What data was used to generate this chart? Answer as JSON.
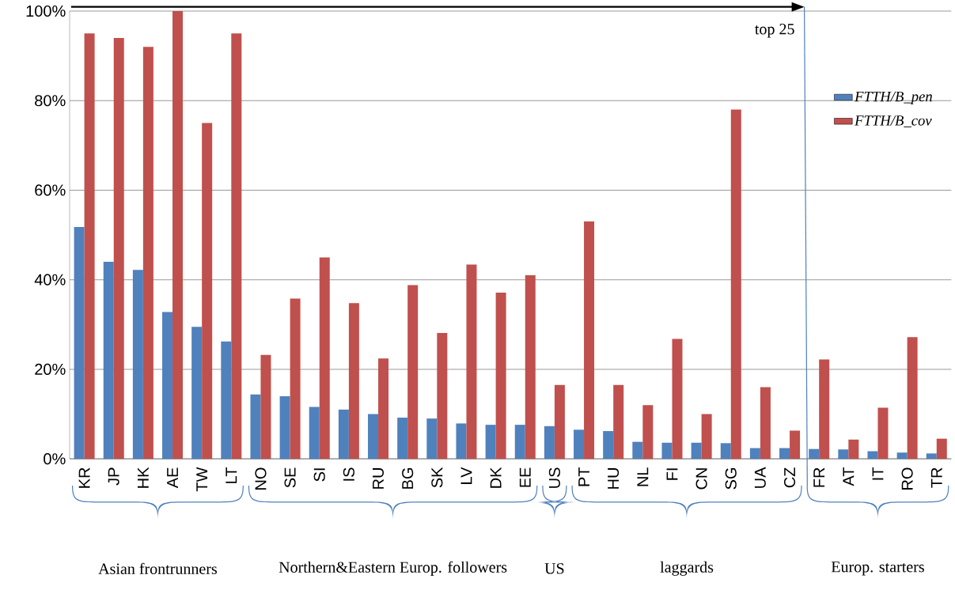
{
  "chart_data": {
    "type": "bar",
    "categories": [
      "KR",
      "JP",
      "HK",
      "AE",
      "TW",
      "LT",
      "NO",
      "SE",
      "SI",
      "IS",
      "RU",
      "BG",
      "SK",
      "LV",
      "DK",
      "EE",
      "US",
      "PT",
      "HU",
      "NL",
      "FI",
      "CN",
      "SG",
      "UA",
      "CZ",
      "FR",
      "AT",
      "IT",
      "RO",
      "TR"
    ],
    "series": [
      {
        "name": "FTTH/B_pen",
        "color": "#4f81bd",
        "values": [
          51.8,
          44,
          42.2,
          32.8,
          29.5,
          26.2,
          14.4,
          14,
          11.6,
          11,
          10,
          9.2,
          9,
          7.9,
          7.6,
          7.6,
          7.3,
          6.5,
          6.2,
          3.8,
          3.6,
          3.6,
          3.5,
          2.4,
          2.4,
          2.2,
          2.1,
          1.7,
          1.4,
          1.2
        ]
      },
      {
        "name": "FTTH/B_cov",
        "color": "#c0504d",
        "values": [
          95,
          94,
          92,
          100,
          75,
          95,
          23.2,
          35.8,
          45,
          34.8,
          22.4,
          38.8,
          28.1,
          43.4,
          37.1,
          41,
          16.5,
          53,
          16.5,
          12,
          26.8,
          10,
          78,
          16,
          6.3,
          22.2,
          4.3,
          11.4,
          27.2,
          4.5
        ]
      }
    ],
    "ylim": [
      0,
      100
    ],
    "yticks": [
      {
        "value": 0,
        "label": "0%"
      },
      {
        "value": 20,
        "label": "20%"
      },
      {
        "value": 40,
        "label": "40%"
      },
      {
        "value": 60,
        "label": "60%"
      },
      {
        "value": 80,
        "label": "80%"
      },
      {
        "value": 100,
        "label": "100%"
      }
    ],
    "grid": "y",
    "legend": "right",
    "annotations": [
      "top 25",
      "Asian frontrunners",
      "Northern&Eastern Europ. followers",
      "US",
      "laggards",
      "Europ. starters"
    ]
  }
}
